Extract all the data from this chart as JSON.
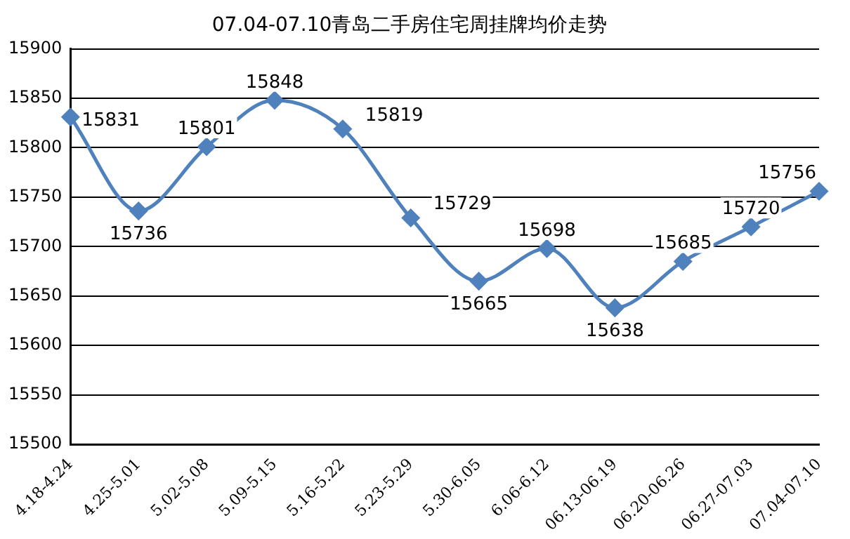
{
  "chart_data": {
    "type": "line",
    "title": "07.04-07.10青岛二手房住宅周挂牌均价走势",
    "categories": [
      "4.18-4.24",
      "4.25-5.01",
      "5.02-5.08",
      "5.09-5.15",
      "5.16-5.22",
      "5.23-5.29",
      "5.30-6.05",
      "6.06-6.12",
      "06.13-06.19",
      "06.20-06.26",
      "06.27-07.03",
      "07.04-07.10"
    ],
    "series": [
      {
        "color": "#4f81bd",
        "values": [
          15831,
          15736,
          15801,
          15848,
          15819,
          15729,
          15665,
          15698,
          15638,
          15685,
          15720,
          15756
        ]
      }
    ],
    "ylim": [
      15500,
      15900
    ],
    "yticks": [
      15500,
      15550,
      15600,
      15650,
      15700,
      15750,
      15800,
      15850,
      15900
    ],
    "grid": "y",
    "marker": "diamond",
    "data_labels": true,
    "legend": false
  }
}
